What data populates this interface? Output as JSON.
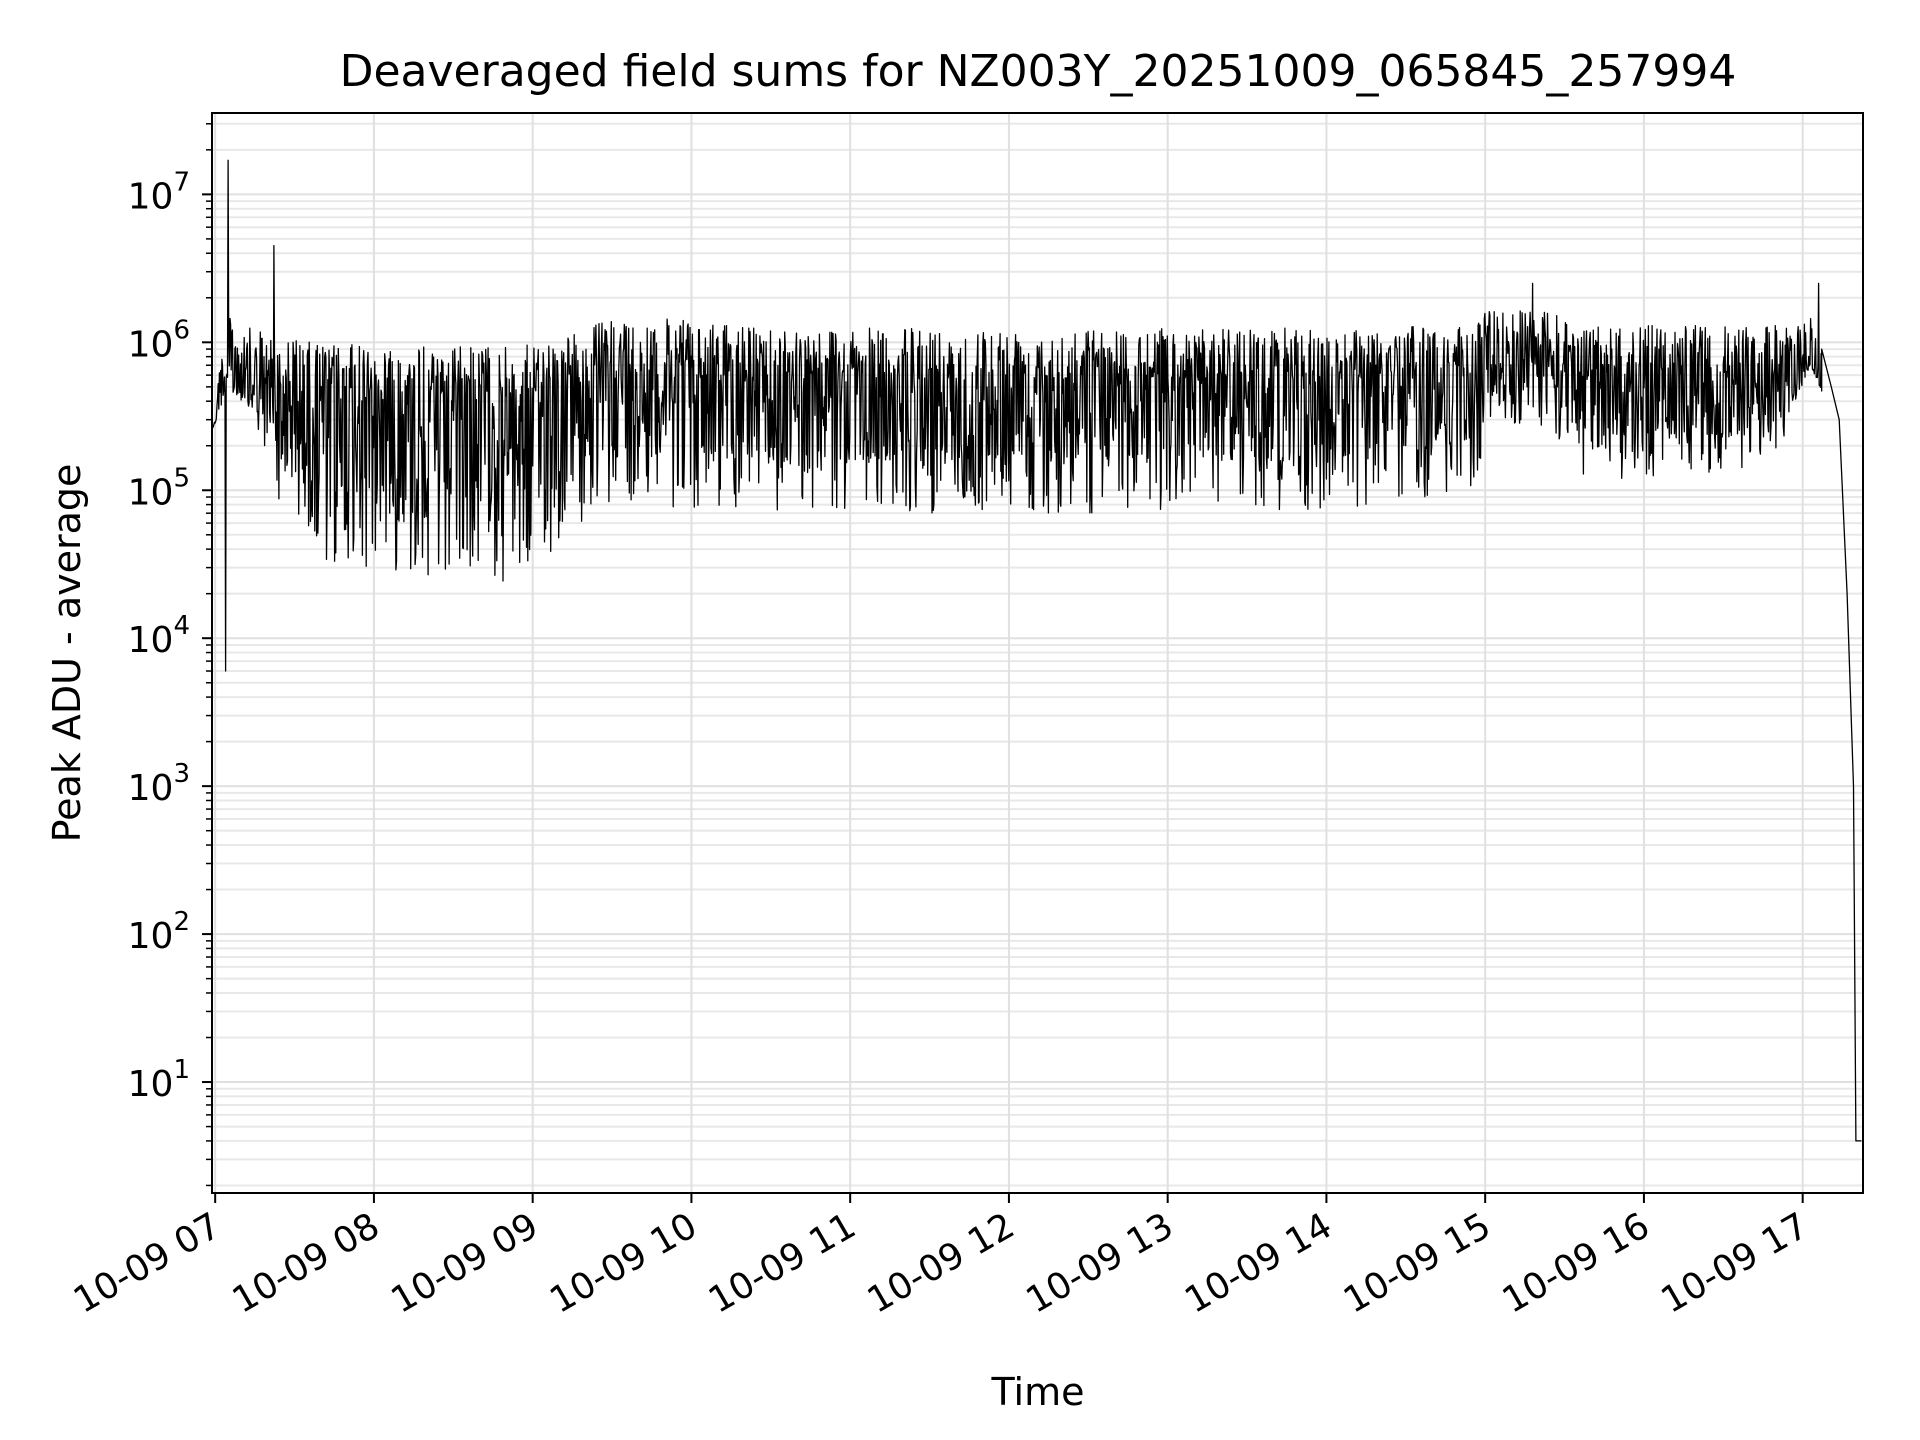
{
  "chart_data": {
    "type": "line",
    "title": "Deaveraged field sums for NZ003Y_20251009_065845_257994",
    "xlabel": "Time",
    "ylabel": "Peak ADU - average",
    "yscale": "log",
    "xlim": [
      6.98,
      17.38
    ],
    "ylim_exp": [
      0.25,
      7.55
    ],
    "x_ticks": [
      7,
      8,
      9,
      10,
      11,
      12,
      13,
      14,
      15,
      16,
      17
    ],
    "x_tick_labels": [
      "10-09 07",
      "10-09 08",
      "10-09 09",
      "10-09 10",
      "10-09 11",
      "10-09 12",
      "10-09 13",
      "10-09 14",
      "10-09 15",
      "10-09 16",
      "10-09 17"
    ],
    "y_ticks": [
      {
        "exp": 1,
        "base": "10",
        "power": "1"
      },
      {
        "exp": 2,
        "base": "10",
        "power": "2"
      },
      {
        "exp": 3,
        "base": "10",
        "power": "3"
      },
      {
        "exp": 4,
        "base": "10",
        "power": "4"
      },
      {
        "exp": 5,
        "base": "10",
        "power": "5"
      },
      {
        "exp": 6,
        "base": "10",
        "power": "6"
      },
      {
        "exp": 7,
        "base": "10",
        "power": "7"
      }
    ],
    "grid": true,
    "line_color": "#000000",
    "series": [
      {
        "name": "field sums",
        "envelope": [
          {
            "t": 6.98,
            "upper": 500000,
            "lower": 300000
          },
          {
            "t": 7.08,
            "upper": 1500000,
            "lower": 400000
          },
          {
            "t": 7.25,
            "upper": 1200000,
            "lower": 250000
          },
          {
            "t": 7.45,
            "upper": 1100000,
            "lower": 60000
          },
          {
            "t": 7.6,
            "upper": 1000000,
            "lower": 30000
          },
          {
            "t": 8.0,
            "upper": 950000,
            "lower": 30000
          },
          {
            "t": 8.5,
            "upper": 950000,
            "lower": 25000
          },
          {
            "t": 8.95,
            "upper": 950000,
            "lower": 20000
          },
          {
            "t": 9.2,
            "upper": 1100000,
            "lower": 50000
          },
          {
            "t": 9.45,
            "upper": 1400000,
            "lower": 80000
          },
          {
            "t": 9.75,
            "upper": 1500000,
            "lower": 80000
          },
          {
            "t": 10.2,
            "upper": 1300000,
            "lower": 70000
          },
          {
            "t": 11.0,
            "upper": 1250000,
            "lower": 70000
          },
          {
            "t": 12.0,
            "upper": 1250000,
            "lower": 70000
          },
          {
            "t": 13.0,
            "upper": 1250000,
            "lower": 70000
          },
          {
            "t": 14.0,
            "upper": 1250000,
            "lower": 70000
          },
          {
            "t": 14.95,
            "upper": 1300000,
            "lower": 100000
          },
          {
            "t": 15.0,
            "upper": 1800000,
            "lower": 300000
          },
          {
            "t": 15.4,
            "upper": 1600000,
            "lower": 250000
          },
          {
            "t": 15.6,
            "upper": 1300000,
            "lower": 120000
          },
          {
            "t": 16.5,
            "upper": 1300000,
            "lower": 120000
          },
          {
            "t": 16.9,
            "upper": 1300000,
            "lower": 200000
          },
          {
            "t": 17.05,
            "upper": 1600000,
            "lower": 700000
          },
          {
            "t": 17.12,
            "upper": 1000000,
            "lower": 500000
          }
        ],
        "spikes": [
          {
            "t": 7.065,
            "value": 6000
          },
          {
            "t": 7.08,
            "value": 17000000
          },
          {
            "t": 7.37,
            "value": 4500000
          },
          {
            "t": 15.3,
            "value": 2500000
          },
          {
            "t": 17.1,
            "value": 2500000
          }
        ],
        "tail": [
          {
            "t": 17.12,
            "value": 900000
          },
          {
            "t": 17.18,
            "value": 500000
          },
          {
            "t": 17.23,
            "value": 300000
          },
          {
            "t": 17.28,
            "value": 20000
          },
          {
            "t": 17.32,
            "value": 1000
          },
          {
            "t": 17.335,
            "value": 4
          },
          {
            "t": 17.37,
            "value": 4
          }
        ]
      }
    ]
  }
}
